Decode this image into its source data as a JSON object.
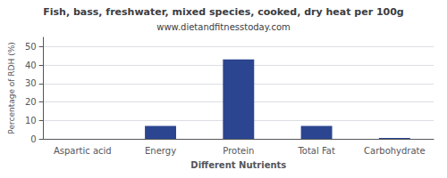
{
  "chart_data": {
    "type": "bar",
    "title": "Fish, bass, freshwater, mixed species, cooked, dry heat per 100g",
    "subtitle": "www.dietandfitnesstoday.com",
    "xlabel": "Different Nutrients",
    "ylabel": "Percentage of RDH (%)",
    "categories": [
      "Aspartic acid",
      "Energy",
      "Protein",
      "Total Fat",
      "Carbohydrate"
    ],
    "values": [
      0,
      7,
      43,
      7,
      0.5
    ],
    "color": "#2b4590",
    "ylim": [
      0,
      55
    ],
    "yticks": [
      0,
      10,
      20,
      30,
      40,
      50
    ],
    "grid": true
  }
}
